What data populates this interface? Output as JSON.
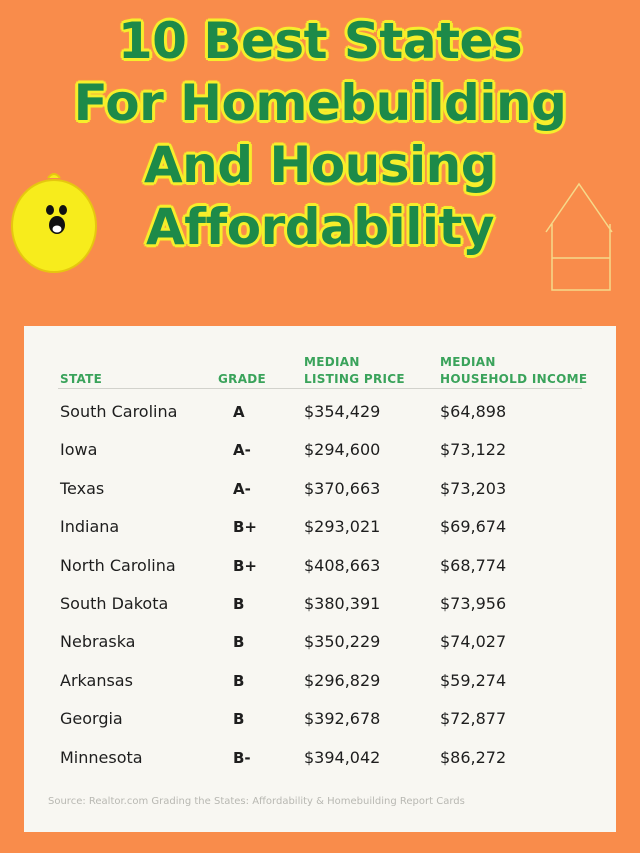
{
  "title": {
    "lines": [
      "10 Best States",
      "For Homebuilding",
      "And Housing",
      "Affordability"
    ]
  },
  "colors": {
    "background": "#f98c4b",
    "title_text": "#1d8a49",
    "title_outline": "#f6ee2c",
    "header_text": "#3aa35b",
    "card_background": "#f8f7f2"
  },
  "decorations": {
    "left_icon": "lemon-face-icon",
    "right_icon": "house-outline-icon"
  },
  "table": {
    "columns": [
      {
        "key": "state",
        "label": "STATE"
      },
      {
        "key": "grade",
        "label": "GRADE"
      },
      {
        "key": "price",
        "label": "MEDIAN\nLISTING PRICE"
      },
      {
        "key": "income",
        "label": "MEDIAN\nHOUSEHOLD INCOME"
      }
    ],
    "rows": [
      {
        "state": "South Carolina",
        "grade": "A",
        "price": "$354,429",
        "income": "$64,898"
      },
      {
        "state": "Iowa",
        "grade": "A-",
        "price": "$294,600",
        "income": "$73,122"
      },
      {
        "state": "Texas",
        "grade": "A-",
        "price": "$370,663",
        "income": "$73,203"
      },
      {
        "state": "Indiana",
        "grade": "B+",
        "price": "$293,021",
        "income": "$69,674"
      },
      {
        "state": "North Carolina",
        "grade": "B+",
        "price": "$408,663",
        "income": "$68,774"
      },
      {
        "state": "South Dakota",
        "grade": "B",
        "price": "$380,391",
        "income": "$73,956"
      },
      {
        "state": "Nebraska",
        "grade": "B",
        "price": "$350,229",
        "income": "$74,027"
      },
      {
        "state": "Arkansas",
        "grade": "B",
        "price": "$296,829",
        "income": "$59,274"
      },
      {
        "state": "Georgia",
        "grade": "B",
        "price": "$392,678",
        "income": "$72,877"
      },
      {
        "state": "Minnesota",
        "grade": "B-",
        "price": "$394,042",
        "income": "$86,272"
      }
    ],
    "source": "Source: Realtor.com Grading the States: Affordability & Homebuilding Report Cards"
  }
}
